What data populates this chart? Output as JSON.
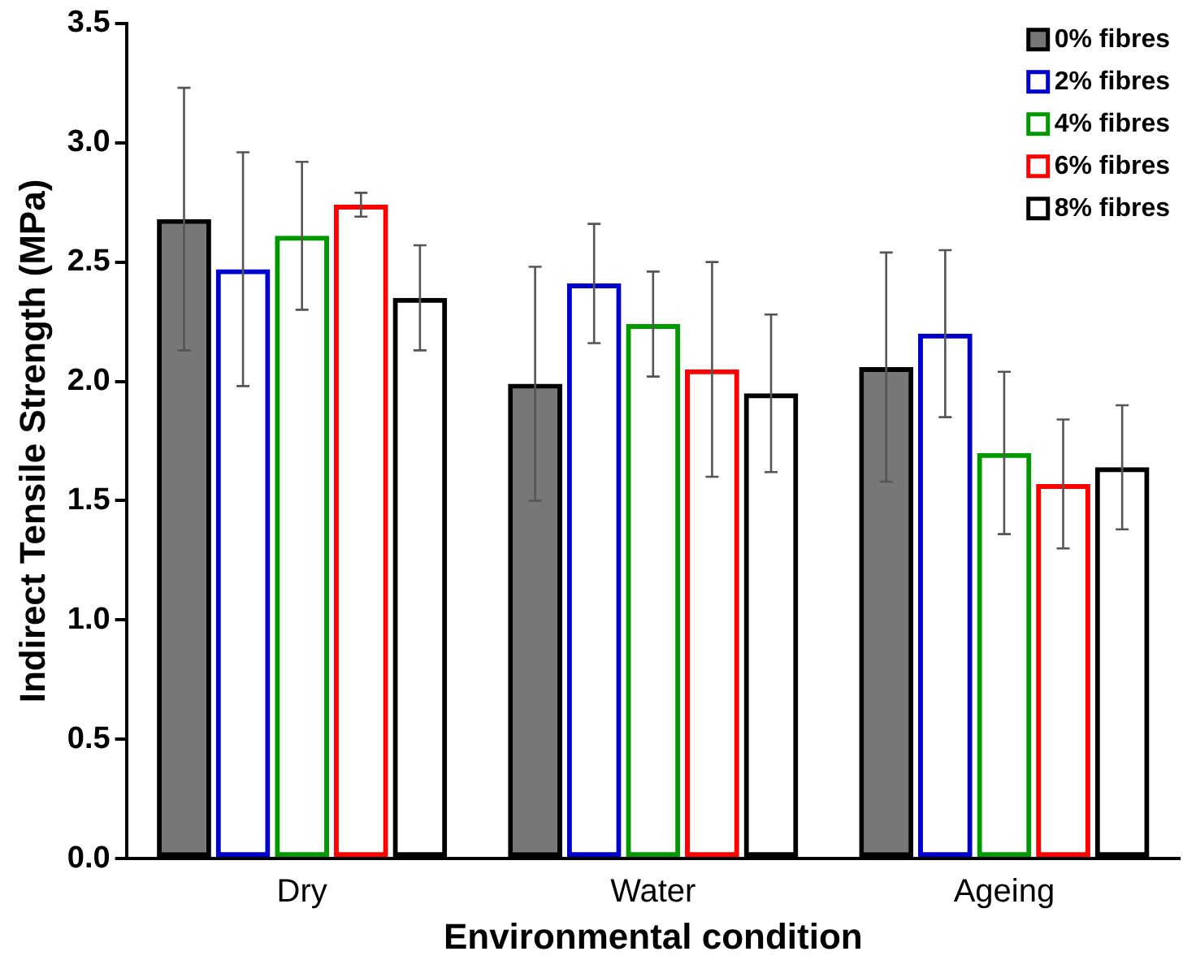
{
  "chart_data": {
    "type": "bar",
    "xlabel": "Environmental condition",
    "ylabel": "Indirect Tensile Strength (MPa)",
    "categories": [
      "Dry",
      "Water",
      "Ageing"
    ],
    "series": [
      {
        "name": "0% fibres",
        "color": "#000000",
        "values": [
          2.68,
          1.99,
          2.06
        ],
        "errors": [
          0.55,
          0.49,
          0.48
        ]
      },
      {
        "name": "2% fibres",
        "color": "#0000cc",
        "values": [
          2.47,
          2.41,
          2.2
        ],
        "errors": [
          0.49,
          0.25,
          0.35
        ]
      },
      {
        "name": "4% fibres",
        "color": "#009900",
        "values": [
          2.61,
          2.24,
          1.7
        ],
        "errors": [
          0.31,
          0.22,
          0.34
        ]
      },
      {
        "name": "6% fibres",
        "color": "#ff0000",
        "values": [
          2.74,
          2.05,
          1.57
        ],
        "errors": [
          0.05,
          0.45,
          0.27
        ]
      },
      {
        "name": "8% fibres",
        "color": "#000000",
        "values": [
          2.35,
          1.95,
          1.64
        ],
        "errors": [
          0.22,
          0.33,
          0.26
        ]
      }
    ],
    "ylim": [
      0,
      3.5
    ],
    "yticks": [
      {
        "value": 0,
        "label": "0.0"
      },
      {
        "value": 0.5,
        "label": "0.5"
      },
      {
        "value": 1,
        "label": "1.0"
      },
      {
        "value": 1.5,
        "label": "1.5"
      },
      {
        "value": 2,
        "label": "2.0"
      },
      {
        "value": 2.5,
        "label": "2.5"
      },
      {
        "value": 3,
        "label": "3.0"
      },
      {
        "value": 3.5,
        "label": "3.5"
      }
    ],
    "grid": false,
    "legend": "top right"
  }
}
